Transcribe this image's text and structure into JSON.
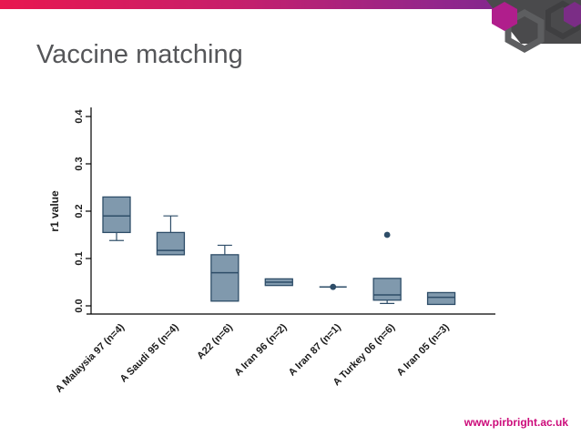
{
  "slide": {
    "title": "Vaccine matching",
    "footer_url": "www.pirbright.ac.uk"
  },
  "theme": {
    "bar_gradient_left": "#e8174f",
    "bar_gradient_right": "#6e2a90",
    "title_color": "#555659",
    "footer_color": "#cc0b7a",
    "box_fill": "#8099ad",
    "box_border": "#2e4d68",
    "axis_color": "#000000",
    "deco_gray": "#4a4a4c",
    "deco_magenta": "#b01e8c"
  },
  "chart_data": {
    "type": "box",
    "title": "",
    "xlabel": "",
    "ylabel": "r1 value",
    "ylim": [
      0,
      0.4
    ],
    "yticks": [
      0,
      0.1,
      0.2,
      0.3,
      0.4
    ],
    "grid": false,
    "legend": "none",
    "categories": [
      "A Malaysia 97 (n=4)",
      "A Saudi 95 (n=4)",
      "A22 (n=6)",
      "A Iran 96 (n=2)",
      "A Iran 87 (n=1)",
      "A Turkey 06 (n=6)",
      "A Iran 05 (n=3)"
    ],
    "boxes": [
      {
        "label": "A Malaysia 97 (n=4)",
        "q1": 0.155,
        "median": 0.19,
        "q3": 0.23,
        "whisker_low": 0.138,
        "whisker_high": null,
        "outliers": []
      },
      {
        "label": "A Saudi 95 (n=4)",
        "q1": 0.108,
        "median": 0.117,
        "q3": 0.155,
        "whisker_low": null,
        "whisker_high": 0.19,
        "outliers": []
      },
      {
        "label": "A22 (n=6)",
        "q1": 0.01,
        "median": 0.07,
        "q3": 0.108,
        "whisker_low": null,
        "whisker_high": 0.128,
        "outliers": []
      },
      {
        "label": "A Iran 96 (n=2)",
        "q1": 0.043,
        "median": 0.05,
        "q3": 0.057,
        "whisker_low": null,
        "whisker_high": null,
        "outliers": []
      },
      {
        "label": "A Iran 87 (n=1)",
        "q1": 0.04,
        "median": 0.04,
        "q3": 0.04,
        "whisker_low": null,
        "whisker_high": null,
        "outliers": [
          0.04
        ]
      },
      {
        "label": "A Turkey 06 (n=6)",
        "q1": 0.012,
        "median": 0.023,
        "q3": 0.058,
        "whisker_low": 0.005,
        "whisker_high": null,
        "outliers": [
          0.15
        ]
      },
      {
        "label": "A Iran 05 (n=3)",
        "q1": 0.003,
        "median": 0.018,
        "q3": 0.028,
        "whisker_low": null,
        "whisker_high": null,
        "outliers": []
      }
    ]
  }
}
